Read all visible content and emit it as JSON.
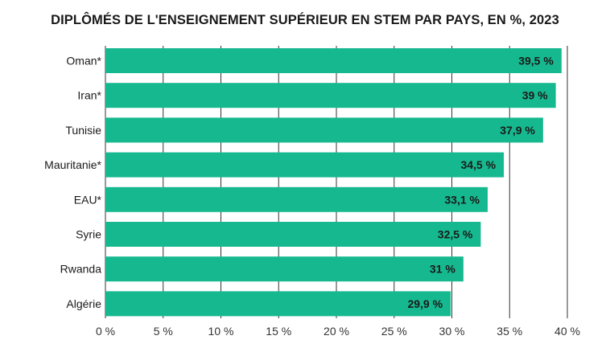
{
  "chart_data": {
    "type": "bar",
    "orientation": "horizontal",
    "title": "DIPLÔMÉS DE L'ENSEIGNEMENT SUPÉRIEUR EN STEM PAR PAYS, EN %, 2023",
    "categories": [
      "Oman*",
      "Iran*",
      "Tunisie",
      "Mauritanie*",
      "EAU*",
      "Syrie",
      "Rwanda",
      "Algérie"
    ],
    "values": [
      39.5,
      39,
      37.9,
      34.5,
      33.1,
      32.5,
      31,
      29.9
    ],
    "value_labels": [
      "39,5 %",
      "39 %",
      "37,9 %",
      "34,5 %",
      "33,1 %",
      "32,5 %",
      "31 %",
      "29,9 %"
    ],
    "x_ticks": [
      0,
      5,
      10,
      15,
      20,
      25,
      30,
      35,
      40
    ],
    "x_tick_labels": [
      "0 %",
      "5 %",
      "10 %",
      "15 %",
      "20 %",
      "25 %",
      "30 %",
      "35 %",
      "40 %"
    ],
    "xlim": [
      0,
      40
    ],
    "grid": "vertical",
    "legend": "none",
    "bar_color": "#16b98f",
    "grid_color": "#333333"
  }
}
